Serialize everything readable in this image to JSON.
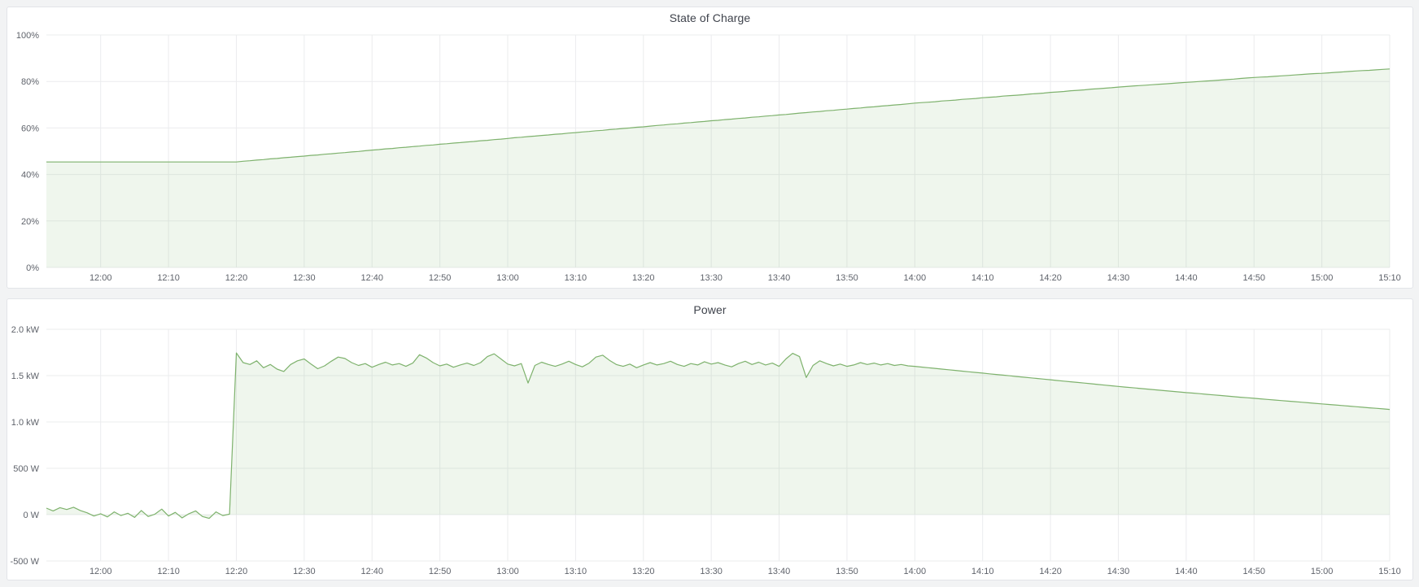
{
  "page": {
    "background_color": "#f2f3f4",
    "panel_background": "#ffffff",
    "panel_border_color": "#e2e4e8",
    "grid_color": "#ebecee",
    "axis_text_color": "#5f636b",
    "accent_green": "#7eb26d"
  },
  "panels": [
    {
      "title": "State of Charge"
    },
    {
      "title": "Power"
    }
  ],
  "chart_data": [
    {
      "type": "area",
      "title": "State of Charge",
      "unit": "%",
      "x_start_time": "11:52",
      "x_end_time": "15:10",
      "x_step_minutes": 1,
      "ylim": [
        0,
        100
      ],
      "grid": true,
      "legend": "none",
      "line_color": "#7eb26d",
      "fill_color": "rgba(126,178,109,0.12)",
      "y_ticks": [
        {
          "value": 0,
          "label": "0%"
        },
        {
          "value": 20,
          "label": "20%"
        },
        {
          "value": 40,
          "label": "40%"
        },
        {
          "value": 60,
          "label": "60%"
        },
        {
          "value": 80,
          "label": "80%"
        },
        {
          "value": 100,
          "label": "100%"
        }
      ],
      "x_ticks": [
        {
          "minute": 8,
          "label": "12:00"
        },
        {
          "minute": 18,
          "label": "12:10"
        },
        {
          "minute": 28,
          "label": "12:20"
        },
        {
          "minute": 38,
          "label": "12:30"
        },
        {
          "minute": 48,
          "label": "12:40"
        },
        {
          "minute": 58,
          "label": "12:50"
        },
        {
          "minute": 68,
          "label": "13:00"
        },
        {
          "minute": 78,
          "label": "13:10"
        },
        {
          "minute": 88,
          "label": "13:20"
        },
        {
          "minute": 98,
          "label": "13:30"
        },
        {
          "minute": 108,
          "label": "13:40"
        },
        {
          "minute": 118,
          "label": "13:50"
        },
        {
          "minute": 128,
          "label": "14:00"
        },
        {
          "minute": 138,
          "label": "14:10"
        },
        {
          "minute": 148,
          "label": "14:20"
        },
        {
          "minute": 158,
          "label": "14:30"
        },
        {
          "minute": 168,
          "label": "14:40"
        },
        {
          "minute": 178,
          "label": "14:50"
        },
        {
          "minute": 188,
          "label": "15:00"
        },
        {
          "minute": 198,
          "label": "15:10"
        }
      ],
      "series": [
        {
          "name": "State of Charge",
          "values": [
            45.4,
            45.4,
            45.4,
            45.4,
            45.4,
            45.4,
            45.4,
            45.4,
            45.4,
            45.4,
            45.4,
            45.4,
            45.4,
            45.4,
            45.4,
            45.4,
            45.4,
            45.4,
            45.4,
            45.4,
            45.4,
            45.4,
            45.4,
            45.4,
            45.4,
            45.4,
            45.4,
            45.4,
            45.4,
            45.7,
            45.9,
            46.2,
            46.4,
            46.7,
            46.9,
            47.2,
            47.4,
            47.7,
            47.9,
            48.2,
            48.4,
            48.7,
            48.9,
            49.2,
            49.4,
            49.7,
            49.9,
            50.2,
            50.5,
            50.7,
            51.0,
            51.2,
            51.5,
            51.7,
            52.0,
            52.2,
            52.5,
            52.7,
            53.0,
            53.2,
            53.5,
            53.7,
            54.0,
            54.2,
            54.5,
            54.7,
            55.0,
            55.2,
            55.5,
            55.8,
            56.0,
            56.3,
            56.5,
            56.8,
            57.0,
            57.3,
            57.5,
            57.8,
            58.0,
            58.3,
            58.5,
            58.8,
            59.0,
            59.3,
            59.5,
            59.8,
            60.0,
            60.3,
            60.5,
            60.8,
            61.1,
            61.3,
            61.6,
            61.8,
            62.1,
            62.3,
            62.6,
            62.8,
            63.1,
            63.3,
            63.6,
            63.8,
            64.1,
            64.3,
            64.6,
            64.8,
            65.1,
            65.3,
            65.6,
            65.8,
            66.1,
            66.4,
            66.6,
            66.9,
            67.1,
            67.4,
            67.6,
            67.9,
            68.1,
            68.4,
            68.6,
            68.9,
            69.1,
            69.4,
            69.6,
            69.9,
            70.1,
            70.4,
            70.7,
            70.9,
            71.1,
            71.3,
            71.6,
            71.8,
            72.0,
            72.3,
            72.5,
            72.7,
            73.0,
            73.2,
            73.4,
            73.7,
            73.9,
            74.1,
            74.3,
            74.6,
            74.8,
            75.0,
            75.3,
            75.5,
            75.7,
            76.0,
            76.2,
            76.4,
            76.7,
            76.9,
            77.1,
            77.3,
            77.6,
            77.8,
            78.0,
            78.2,
            78.4,
            78.6,
            78.8,
            79.0,
            79.2,
            79.4,
            79.6,
            79.8,
            80.0,
            80.2,
            80.4,
            80.6,
            80.8,
            81.0,
            81.3,
            81.5,
            81.7,
            81.9,
            82.0,
            82.2,
            82.4,
            82.6,
            82.8,
            83.0,
            83.2,
            83.4,
            83.5,
            83.7,
            83.9,
            84.1,
            84.3,
            84.5,
            84.7,
            84.8,
            85.0,
            85.2,
            85.4
          ]
        }
      ]
    },
    {
      "type": "area",
      "title": "Power",
      "unit": "W",
      "x_start_time": "11:52",
      "x_end_time": "15:10",
      "x_step_minutes": 1,
      "ylim": [
        -500,
        2000
      ],
      "grid": true,
      "legend": "none",
      "line_color": "#7eb26d",
      "fill_color": "rgba(126,178,109,0.12)",
      "y_ticks": [
        {
          "value": -500,
          "label": "-500 W"
        },
        {
          "value": 0,
          "label": "0 W"
        },
        {
          "value": 500,
          "label": "500 W"
        },
        {
          "value": 1000,
          "label": "1.0 kW"
        },
        {
          "value": 1500,
          "label": "1.5 kW"
        },
        {
          "value": 2000,
          "label": "2.0 kW"
        }
      ],
      "x_ticks": [
        {
          "minute": 8,
          "label": "12:00"
        },
        {
          "minute": 18,
          "label": "12:10"
        },
        {
          "minute": 28,
          "label": "12:20"
        },
        {
          "minute": 38,
          "label": "12:30"
        },
        {
          "minute": 48,
          "label": "12:40"
        },
        {
          "minute": 58,
          "label": "12:50"
        },
        {
          "minute": 68,
          "label": "13:00"
        },
        {
          "minute": 78,
          "label": "13:10"
        },
        {
          "minute": 88,
          "label": "13:20"
        },
        {
          "minute": 98,
          "label": "13:30"
        },
        {
          "minute": 108,
          "label": "13:40"
        },
        {
          "minute": 118,
          "label": "13:50"
        },
        {
          "minute": 128,
          "label": "14:00"
        },
        {
          "minute": 138,
          "label": "14:10"
        },
        {
          "minute": 148,
          "label": "14:20"
        },
        {
          "minute": 158,
          "label": "14:30"
        },
        {
          "minute": 168,
          "label": "14:40"
        },
        {
          "minute": 178,
          "label": "14:50"
        },
        {
          "minute": 188,
          "label": "15:00"
        },
        {
          "minute": 198,
          "label": "15:10"
        }
      ],
      "series": [
        {
          "name": "Power",
          "values": [
            70,
            40,
            75,
            55,
            80,
            45,
            20,
            -15,
            10,
            -25,
            30,
            -10,
            15,
            -30,
            45,
            -20,
            5,
            60,
            -15,
            25,
            -35,
            10,
            40,
            -20,
            -40,
            30,
            -10,
            5,
            1745,
            1640,
            1620,
            1660,
            1585,
            1620,
            1570,
            1545,
            1620,
            1660,
            1680,
            1625,
            1575,
            1605,
            1655,
            1700,
            1685,
            1640,
            1610,
            1630,
            1590,
            1620,
            1645,
            1615,
            1630,
            1600,
            1635,
            1725,
            1690,
            1640,
            1605,
            1625,
            1590,
            1615,
            1635,
            1610,
            1640,
            1705,
            1735,
            1680,
            1625,
            1605,
            1630,
            1420,
            1610,
            1645,
            1620,
            1600,
            1625,
            1655,
            1620,
            1595,
            1635,
            1700,
            1720,
            1665,
            1620,
            1600,
            1625,
            1585,
            1615,
            1640,
            1615,
            1630,
            1655,
            1620,
            1600,
            1630,
            1615,
            1650,
            1625,
            1640,
            1615,
            1595,
            1630,
            1655,
            1620,
            1645,
            1615,
            1635,
            1600,
            1680,
            1740,
            1705,
            1480,
            1610,
            1660,
            1630,
            1605,
            1625,
            1600,
            1615,
            1640,
            1620,
            1635,
            1615,
            1630,
            1610,
            1620,
            1605,
            1600,
            1592,
            1585,
            1578,
            1570,
            1563,
            1556,
            1548,
            1541,
            1534,
            1527,
            1519,
            1512,
            1505,
            1498,
            1490,
            1483,
            1476,
            1469,
            1462,
            1455,
            1447,
            1440,
            1433,
            1426,
            1419,
            1412,
            1404,
            1397,
            1390,
            1383,
            1376,
            1370,
            1363,
            1356,
            1350,
            1343,
            1337,
            1330,
            1324,
            1317,
            1311,
            1305,
            1298,
            1292,
            1286,
            1280,
            1273,
            1267,
            1261,
            1255,
            1249,
            1243,
            1237,
            1231,
            1225,
            1219,
            1213,
            1207,
            1201,
            1195,
            1189,
            1183,
            1177,
            1171,
            1165,
            1159,
            1153,
            1147,
            1141,
            1135
          ]
        }
      ]
    }
  ]
}
